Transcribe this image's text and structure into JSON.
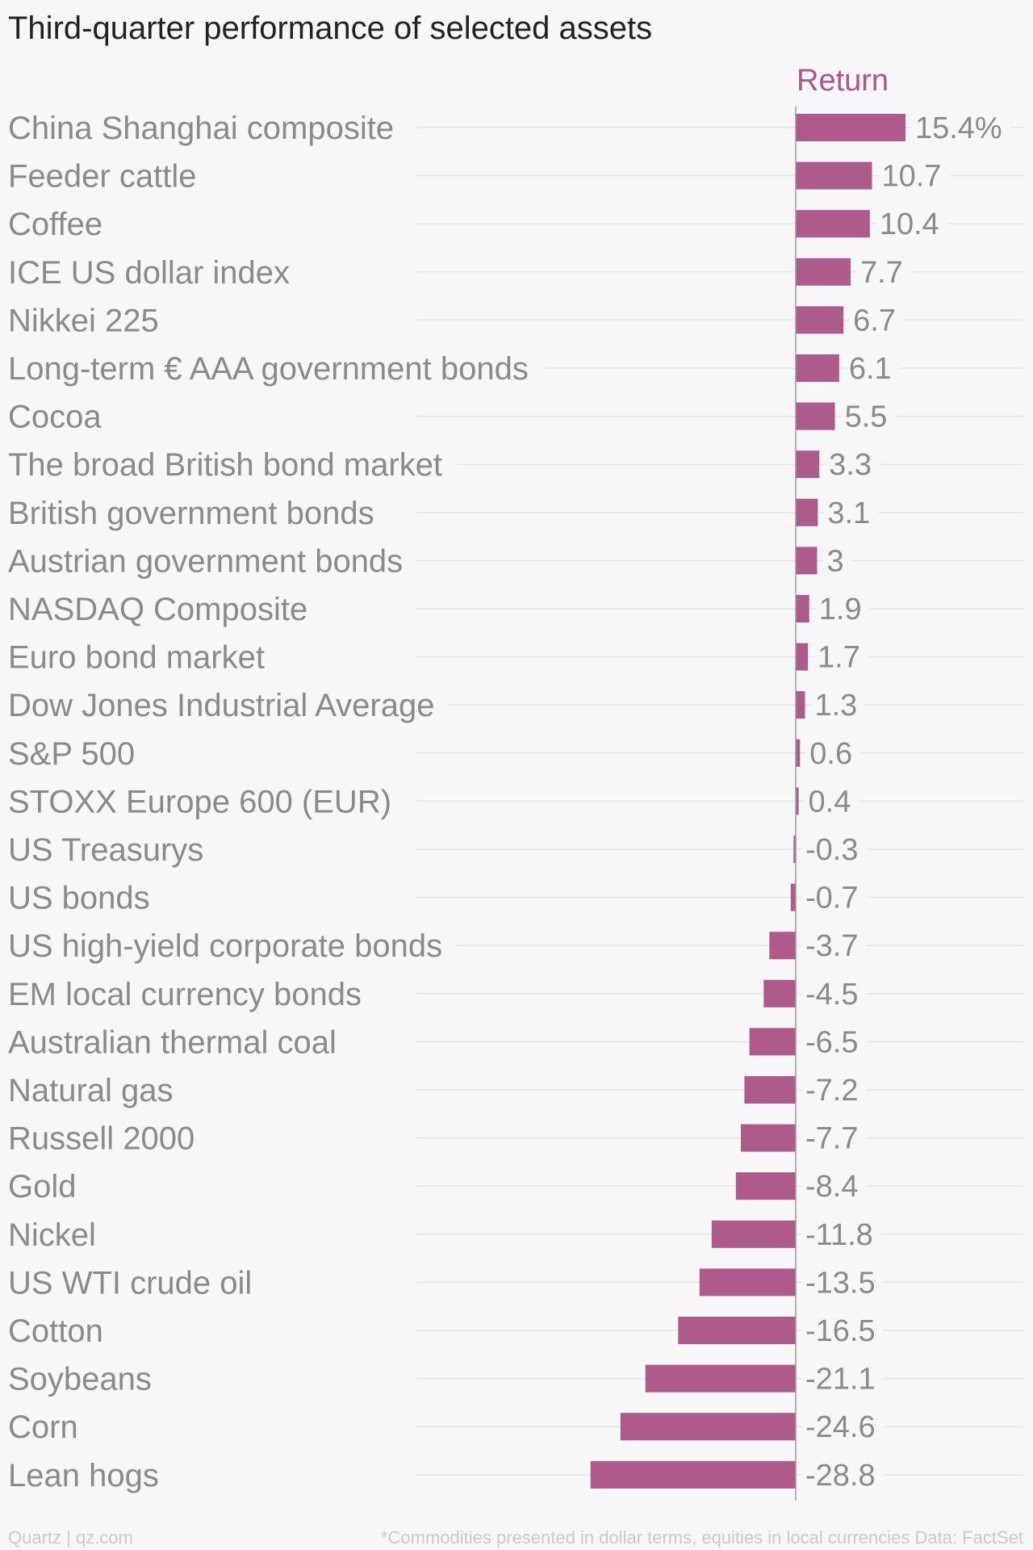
{
  "chart_data": {
    "type": "bar",
    "orientation": "horizontal",
    "title": "Third-quarter performance of selected assets",
    "series": [
      {
        "name": "Return",
        "color": "#ae5a8b",
        "values": [
          15.4,
          10.7,
          10.4,
          7.7,
          6.7,
          6.1,
          5.5,
          3.3,
          3.1,
          3,
          1.9,
          1.7,
          1.3,
          0.6,
          0.4,
          -0.3,
          -0.7,
          -3.7,
          -4.5,
          -6.5,
          -7.2,
          -7.7,
          -8.4,
          -11.8,
          -13.5,
          -16.5,
          -21.1,
          -24.6,
          -28.8
        ]
      }
    ],
    "categories": [
      "China Shanghai composite",
      "Feeder cattle",
      "Coffee",
      "ICE US dollar index",
      "Nikkei 225",
      "Long-term € AAA government bonds",
      "Cocoa",
      "The broad British bond market",
      "British government bonds",
      "Austrian government bonds",
      "NASDAQ Composite",
      "Euro bond market",
      "Dow Jones Industrial Average",
      "S&P 500",
      "STOXX Europe 600 (EUR)",
      "US Treasurys",
      "US bonds",
      "US high-yield corporate bonds",
      "EM local currency bonds",
      "Australian thermal coal",
      "Natural gas",
      "Russell 2000",
      "Gold",
      "Nickel",
      "US WTI crude oil",
      "Cotton",
      "Soybeans",
      "Corn",
      "Lean hogs"
    ],
    "value_labels": [
      "15.4%",
      "10.7",
      "10.4",
      "7.7",
      "6.7",
      "6.1",
      "5.5",
      "3.3",
      "3.1",
      "3",
      "1.9",
      "1.7",
      "1.3",
      "0.6",
      "0.4",
      "-0.3",
      "-0.7",
      "-3.7",
      "-4.5",
      "-6.5",
      "-7.2",
      "-7.7",
      "-8.4",
      "-11.8",
      "-13.5",
      "-16.5",
      "-21.1",
      "-24.6",
      "-28.8"
    ],
    "xlim": [
      -38,
      28
    ],
    "grid": true,
    "legend": "top"
  },
  "footer": {
    "source": "Quartz | qz.com",
    "note": "*Commodities presented in dollar terms, equities in local currencies Data: FactSet"
  }
}
